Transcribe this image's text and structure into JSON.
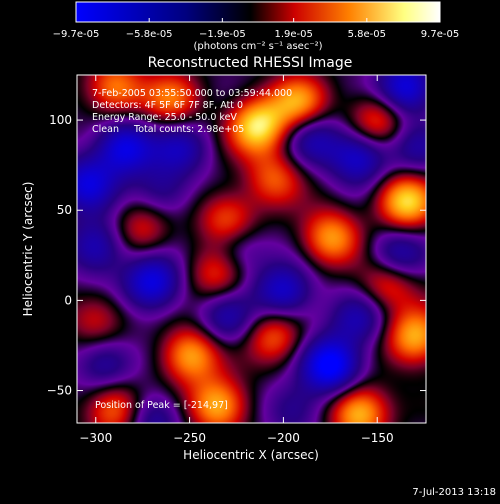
{
  "colorbar": {
    "tick_labels": [
      "-9.7e-05",
      "-5.8e-05",
      "-1.9e-05",
      "1.9e-05",
      "5.8e-05",
      "9.7e-05"
    ],
    "tick_values": [
      -9.7e-05,
      -5.8e-05,
      -1.9e-05,
      1.9e-05,
      5.8e-05,
      9.7e-05
    ],
    "range": [
      -9.7e-05,
      9.7e-05
    ],
    "colors": [
      "#0000ff",
      "#000080",
      "#000000",
      "#cc0000",
      "#ff8000",
      "#ffff80",
      "#ffffff"
    ],
    "unit_label": "(photons cm⁻² s⁻¹ asec⁻²)"
  },
  "chart_data": {
    "type": "heatmap",
    "title": "Reconstructed RHESSI Image",
    "xlabel": "Heliocentric X (arcsec)",
    "ylabel": "Heliocentric Y (arcsec)",
    "xlim": [
      -310,
      -124
    ],
    "ylim": [
      -68,
      125
    ],
    "xticks": [
      -300,
      -250,
      -200,
      -150
    ],
    "yticks": [
      -50,
      0,
      50,
      100
    ],
    "annotations": [
      "7-Feb-2005 03:55:50.000 to 03:59:44.000",
      "Detectors: 4F 5F 6F 7F 8F, Att 0",
      "Energy Range: 25.0 - 50.0 keV",
      "Clean     Total counts: 2.98e+05"
    ],
    "peak_label": "Position of Peak = [-214,97]",
    "peak": [
      -214,
      97
    ],
    "sources": [
      {
        "x": -214,
        "y": 97,
        "v": 1.0
      },
      {
        "x": -192,
        "y": 110,
        "v": 0.75
      },
      {
        "x": -260,
        "y": 112,
        "v": 0.6
      },
      {
        "x": -290,
        "y": 118,
        "v": 0.7
      },
      {
        "x": -135,
        "y": 55,
        "v": 0.95
      },
      {
        "x": -150,
        "y": 100,
        "v": 0.6
      },
      {
        "x": -205,
        "y": 68,
        "v": 0.55
      },
      {
        "x": -175,
        "y": 35,
        "v": 0.75
      },
      {
        "x": -230,
        "y": 45,
        "v": 0.6
      },
      {
        "x": -235,
        "y": 15,
        "v": 0.55
      },
      {
        "x": -275,
        "y": 40,
        "v": 0.45
      },
      {
        "x": -250,
        "y": -30,
        "v": 0.8
      },
      {
        "x": -290,
        "y": -60,
        "v": 0.7
      },
      {
        "x": -235,
        "y": -58,
        "v": 0.85
      },
      {
        "x": -160,
        "y": -62,
        "v": 0.9
      },
      {
        "x": -130,
        "y": -20,
        "v": 0.85
      },
      {
        "x": -145,
        "y": 10,
        "v": 0.6
      },
      {
        "x": -205,
        "y": -20,
        "v": 0.6
      },
      {
        "x": -300,
        "y": -10,
        "v": 0.4
      },
      {
        "x": -285,
        "y": 85,
        "v": -0.8
      },
      {
        "x": -175,
        "y": -36,
        "v": -1.0
      },
      {
        "x": -270,
        "y": 10,
        "v": -0.8
      },
      {
        "x": -305,
        "y": 65,
        "v": -0.7
      },
      {
        "x": -200,
        "y": 5,
        "v": -0.7
      },
      {
        "x": -160,
        "y": 80,
        "v": -0.7
      },
      {
        "x": -135,
        "y": 118,
        "v": -0.8
      },
      {
        "x": -255,
        "y": 85,
        "v": -0.5
      },
      {
        "x": -300,
        "y": 30,
        "v": -0.6
      },
      {
        "x": -140,
        "y": 25,
        "v": -0.6
      },
      {
        "x": -160,
        "y": -10,
        "v": -0.5
      },
      {
        "x": -230,
        "y": -10,
        "v": -0.5
      },
      {
        "x": -295,
        "y": -35,
        "v": -0.5
      },
      {
        "x": -270,
        "y": -65,
        "v": -0.5
      },
      {
        "x": -195,
        "y": -60,
        "v": -0.4
      },
      {
        "x": -225,
        "y": 28,
        "v": -0.4
      },
      {
        "x": -265,
        "y": 60,
        "v": -0.4
      },
      {
        "x": -185,
        "y": 90,
        "v": -0.5
      },
      {
        "x": -130,
        "y": 85,
        "v": -0.4
      }
    ]
  },
  "footer": {
    "timestamp": "7-Jul-2013 13:18"
  }
}
